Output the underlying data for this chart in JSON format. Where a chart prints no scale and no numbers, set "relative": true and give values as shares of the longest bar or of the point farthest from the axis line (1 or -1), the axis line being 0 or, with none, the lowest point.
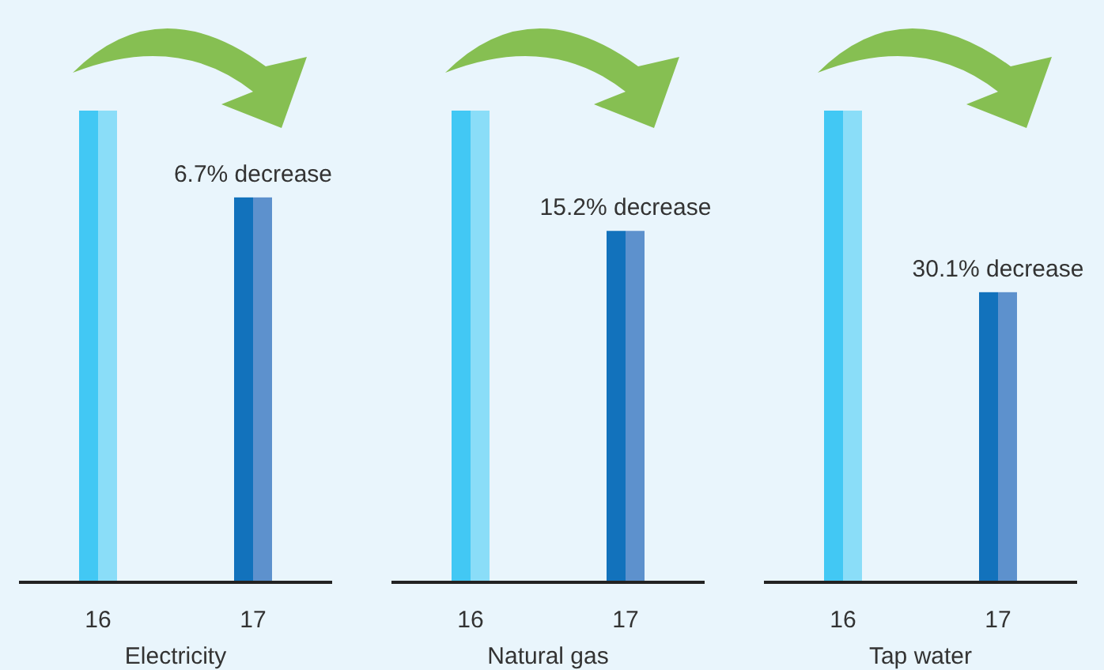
{
  "chart_data": [
    {
      "type": "bar",
      "relative": true,
      "xlabel": "Electricity",
      "categories": [
        "16",
        "17"
      ],
      "series": [
        {
          "colors": [
            "#42c8f4",
            "#1272bc"
          ],
          "values": [
            1,
            0.816
          ]
        }
      ],
      "annotations": [
        {
          "text": "6.7% decrease",
          "x": "17",
          "y": 0.816
        }
      ]
    },
    {
      "type": "bar",
      "relative": true,
      "xlabel": "Natural gas",
      "categories": [
        "16",
        "17"
      ],
      "series": [
        {
          "colors": [
            "#42c8f4",
            "#1272bc"
          ],
          "values": [
            1,
            0.745
          ]
        }
      ],
      "annotations": [
        {
          "text": "15.2% decrease",
          "x": "17",
          "y": 0.745
        }
      ]
    },
    {
      "type": "bar",
      "relative": true,
      "xlabel": "Tap water",
      "categories": [
        "16",
        "17"
      ],
      "series": [
        {
          "colors": [
            "#42c8f4",
            "#1272bc"
          ],
          "values": [
            1,
            0.615
          ]
        }
      ],
      "annotations": [
        {
          "text": "30.1% decrease",
          "x": "17",
          "y": 0.615
        }
      ]
    }
  ]
}
